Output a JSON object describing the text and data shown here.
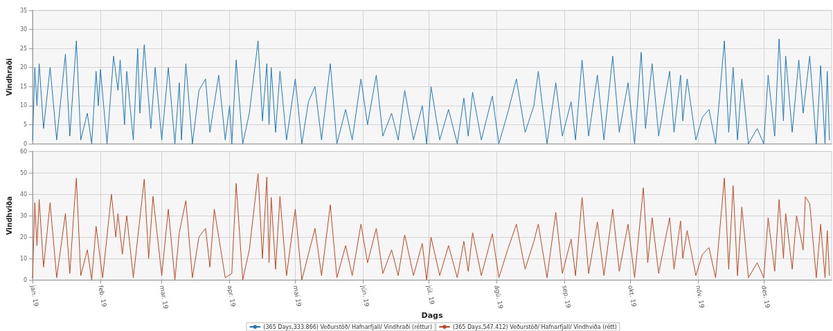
{
  "chart_data": [
    {
      "type": "line",
      "ylabel": "Vindhraði",
      "xlim": [
        "2019-01-01",
        "2020-01-01"
      ],
      "ylim": [
        0,
        35
      ],
      "yticks": [
        0,
        5,
        10,
        15,
        20,
        25,
        30,
        35
      ],
      "xticks": [
        {
          "value": "2019-01-01",
          "label": null
        },
        {
          "value": "2019-02-01",
          "label": null
        },
        {
          "value": "2019-03-01",
          "label": null
        },
        {
          "value": "2019-04-01",
          "label": null
        },
        {
          "value": "2019-05-01",
          "label": null
        },
        {
          "value": "2019-06-01",
          "label": null
        },
        {
          "value": "2019-07-01",
          "label": null
        },
        {
          "value": "2019-08-01",
          "label": null
        },
        {
          "value": "2019-09-01",
          "label": null
        },
        {
          "value": "2019-10-01",
          "label": null
        },
        {
          "value": "2019-11-01",
          "label": null
        },
        {
          "value": "2019-12-01",
          "label": null
        }
      ],
      "tick_labels": "y",
      "grid": true,
      "legend": "bottom",
      "series": [
        {
          "name": "(365 Days,333.866) Veðurstöð/ Hafnarfjall/ Vindhraði (réttur)",
          "color": "#1b78bd",
          "x": [
            "2019-01-01",
            "2019-01-02",
            "2019-01-03",
            "2019-01-04",
            "2019-01-06",
            "2019-01-09",
            "2019-01-12",
            "2019-01-16",
            "2019-01-18",
            "2019-01-21",
            "2019-01-23",
            "2019-01-26",
            "2019-01-28",
            "2019-01-30",
            "2019-01-31",
            "2019-02-01",
            "2019-02-04",
            "2019-02-07",
            "2019-02-09",
            "2019-02-10",
            "2019-02-12",
            "2019-02-13",
            "2019-02-16",
            "2019-02-18",
            "2019-02-19",
            "2019-02-21",
            "2019-02-24",
            "2019-02-26",
            "2019-03-01",
            "2019-03-04",
            "2019-03-07",
            "2019-03-09",
            "2019-03-10",
            "2019-03-12",
            "2019-03-15",
            "2019-03-18",
            "2019-03-21",
            "2019-03-23",
            "2019-03-27",
            "2019-03-30",
            "2019-04-01",
            "2019-04-02",
            "2019-04-04",
            "2019-04-07",
            "2019-04-10",
            "2019-04-14",
            "2019-04-16",
            "2019-04-18",
            "2019-04-19",
            "2019-04-20",
            "2019-04-22",
            "2019-04-24",
            "2019-04-27",
            "2019-05-01",
            "2019-05-04",
            "2019-05-07",
            "2019-05-10",
            "2019-05-13",
            "2019-05-17",
            "2019-05-20",
            "2019-05-24",
            "2019-05-27",
            "2019-05-31",
            "2019-06-03",
            "2019-06-07",
            "2019-06-10",
            "2019-06-14",
            "2019-06-17",
            "2019-06-20",
            "2019-06-24",
            "2019-06-28",
            "2019-06-30",
            "2019-07-02",
            "2019-07-06",
            "2019-07-10",
            "2019-07-14",
            "2019-07-17",
            "2019-07-19",
            "2019-07-21",
            "2019-07-25",
            "2019-07-30",
            "2019-08-02",
            "2019-08-06",
            "2019-08-10",
            "2019-08-14",
            "2019-08-18",
            "2019-08-20",
            "2019-08-24",
            "2019-08-28",
            "2019-08-31",
            "2019-09-04",
            "2019-09-06",
            "2019-09-09",
            "2019-09-12",
            "2019-09-16",
            "2019-09-19",
            "2019-09-23",
            "2019-09-26",
            "2019-09-30",
            "2019-10-03",
            "2019-10-06",
            "2019-10-08",
            "2019-10-11",
            "2019-10-14",
            "2019-10-19",
            "2019-10-21",
            "2019-10-24",
            "2019-10-25",
            "2019-10-27",
            "2019-10-31",
            "2019-11-03",
            "2019-11-06",
            "2019-11-09",
            "2019-11-13",
            "2019-11-15",
            "2019-11-17",
            "2019-11-19",
            "2019-11-21",
            "2019-11-24",
            "2019-11-28",
            "2019-12-01",
            "2019-12-03",
            "2019-12-06",
            "2019-12-08",
            "2019-12-10",
            "2019-12-11",
            "2019-12-14",
            "2019-12-17",
            "2019-12-19",
            "2019-12-22",
            "2019-12-25",
            "2019-12-27",
            "2019-12-29",
            "2019-12-30",
            "2019-12-31"
          ],
          "values": [
            1,
            20,
            10,
            21,
            4,
            20,
            1,
            23.5,
            2,
            27,
            1,
            8,
            0,
            19,
            10,
            19.5,
            0,
            23,
            14,
            22,
            5,
            19,
            1,
            25,
            8,
            26,
            4,
            20,
            1,
            20,
            0,
            16,
            1,
            21,
            0,
            14,
            17,
            3,
            18,
            1,
            10,
            0,
            22,
            0,
            8,
            27,
            6,
            21,
            5,
            20,
            3,
            19,
            1,
            17,
            0,
            11,
            15,
            1,
            21,
            0,
            9,
            1,
            17,
            5,
            18,
            2,
            8,
            1,
            14,
            1,
            10,
            0,
            15,
            1,
            9,
            0,
            12,
            2,
            13.5,
            1,
            12.5,
            0,
            8,
            17,
            3,
            10,
            19,
            0,
            16,
            2,
            11,
            1,
            22,
            2,
            18,
            1,
            23,
            3,
            16,
            0,
            24,
            4,
            21,
            2,
            19,
            3,
            18,
            6,
            17,
            1,
            7,
            9,
            0,
            27,
            3,
            20,
            1,
            17,
            0,
            4,
            0,
            18,
            2,
            27.5,
            6,
            23,
            3,
            22,
            8,
            23,
            0,
            20.5,
            0,
            19,
            1
          ]
        }
      ]
    },
    {
      "type": "line",
      "ylabel": "Vindhviða",
      "xlabel": "Dags",
      "xlim": [
        "2019-01-01",
        "2020-01-01"
      ],
      "ylim": [
        0,
        60
      ],
      "yticks": [
        0,
        10,
        20,
        30,
        40,
        50,
        60
      ],
      "xticks": [
        {
          "value": "2019-01-01",
          "label": "jan. 19"
        },
        {
          "value": "2019-02-01",
          "label": "feb. 19"
        },
        {
          "value": "2019-03-01",
          "label": "mar. 19"
        },
        {
          "value": "2019-04-01",
          "label": "apr. 19"
        },
        {
          "value": "2019-05-01",
          "label": "maí 19"
        },
        {
          "value": "2019-06-01",
          "label": "jún. 19"
        },
        {
          "value": "2019-07-01",
          "label": "júl. 19"
        },
        {
          "value": "2019-08-01",
          "label": "ágú. 19"
        },
        {
          "value": "2019-09-01",
          "label": "sep. 19"
        },
        {
          "value": "2019-10-01",
          "label": "okt. 19"
        },
        {
          "value": "2019-11-01",
          "label": "nóv. 19"
        },
        {
          "value": "2019-12-01",
          "label": "des. 19"
        }
      ],
      "grid": true,
      "legend": "bottom",
      "series": [
        {
          "name": "(365 Days,547.412) Veðurstöð/ Hafnarfjall/ Vindhviða (rétt)",
          "color": "#c2461e",
          "x": [
            "2019-01-01",
            "2019-01-02",
            "2019-01-03",
            "2019-01-04",
            "2019-01-06",
            "2019-01-09",
            "2019-01-12",
            "2019-01-16",
            "2019-01-18",
            "2019-01-20",
            "2019-01-21",
            "2019-01-23",
            "2019-01-26",
            "2019-01-28",
            "2019-01-30",
            "2019-02-02",
            "2019-02-06",
            "2019-02-08",
            "2019-02-09",
            "2019-02-11",
            "2019-02-13",
            "2019-02-16",
            "2019-02-21",
            "2019-02-23",
            "2019-02-25",
            "2019-03-01",
            "2019-03-04",
            "2019-03-07",
            "2019-03-09",
            "2019-03-12",
            "2019-03-15",
            "2019-03-18",
            "2019-03-21",
            "2019-03-23",
            "2019-03-25",
            "2019-03-30",
            "2019-04-02",
            "2019-04-04",
            "2019-04-07",
            "2019-04-10",
            "2019-04-14",
            "2019-04-16",
            "2019-04-18",
            "2019-04-19",
            "2019-04-20",
            "2019-04-22",
            "2019-04-24",
            "2019-04-27",
            "2019-05-01",
            "2019-05-04",
            "2019-05-10",
            "2019-05-13",
            "2019-05-17",
            "2019-05-20",
            "2019-05-24",
            "2019-05-27",
            "2019-05-31",
            "2019-06-03",
            "2019-06-07",
            "2019-06-10",
            "2019-06-14",
            "2019-06-17",
            "2019-06-20",
            "2019-06-24",
            "2019-06-28",
            "2019-06-30",
            "2019-07-02",
            "2019-07-06",
            "2019-07-10",
            "2019-07-14",
            "2019-07-17",
            "2019-07-19",
            "2019-07-21",
            "2019-07-25",
            "2019-07-30",
            "2019-08-02",
            "2019-08-06",
            "2019-08-10",
            "2019-08-14",
            "2019-08-18",
            "2019-08-20",
            "2019-08-24",
            "2019-08-28",
            "2019-08-31",
            "2019-09-04",
            "2019-09-06",
            "2019-09-09",
            "2019-09-12",
            "2019-09-16",
            "2019-09-19",
            "2019-09-23",
            "2019-09-26",
            "2019-09-30",
            "2019-10-03",
            "2019-10-07",
            "2019-10-09",
            "2019-10-11",
            "2019-10-14",
            "2019-10-19",
            "2019-10-21",
            "2019-10-24",
            "2019-10-25",
            "2019-10-27",
            "2019-10-31",
            "2019-11-03",
            "2019-11-06",
            "2019-11-09",
            "2019-11-13",
            "2019-11-15",
            "2019-11-17",
            "2019-11-19",
            "2019-11-21",
            "2019-11-24",
            "2019-11-28",
            "2019-12-01",
            "2019-12-03",
            "2019-12-06",
            "2019-12-08",
            "2019-12-10",
            "2019-12-11",
            "2019-12-14",
            "2019-12-16",
            "2019-12-19",
            "2019-12-20",
            "2019-12-22",
            "2019-12-25",
            "2019-12-27",
            "2019-12-29",
            "2019-12-30",
            "2019-12-31"
          ],
          "values": [
            1,
            36,
            16,
            37.5,
            6,
            36,
            1,
            31,
            3,
            34,
            47.5,
            2,
            14,
            0,
            25,
            1,
            40,
            20,
            31,
            12,
            30,
            1,
            47,
            10,
            39,
            2,
            33,
            0,
            22,
            37,
            1,
            20,
            24,
            6,
            33,
            1,
            3,
            45,
            0,
            14,
            49.5,
            10,
            48,
            8,
            38.5,
            5,
            39,
            2,
            33,
            0,
            24,
            2,
            35,
            1,
            16,
            2,
            26,
            8,
            24,
            3,
            14,
            2,
            21,
            2,
            17,
            0,
            20,
            2,
            16,
            1,
            18,
            4,
            22,
            2,
            21.5,
            1,
            14,
            26,
            5,
            18,
            26,
            1,
            31.5,
            3,
            19,
            2,
            38.5,
            3,
            27,
            2,
            33,
            4,
            26,
            1,
            43,
            8,
            29,
            3,
            29,
            5,
            27.5,
            10,
            23,
            2,
            12,
            15,
            1,
            47.5,
            5,
            44,
            2,
            34,
            1,
            8,
            1,
            29,
            4,
            37.5,
            10,
            31,
            5,
            30,
            14,
            38.8,
            35.6,
            1,
            26,
            1,
            23,
            2
          ]
        }
      ]
    }
  ]
}
